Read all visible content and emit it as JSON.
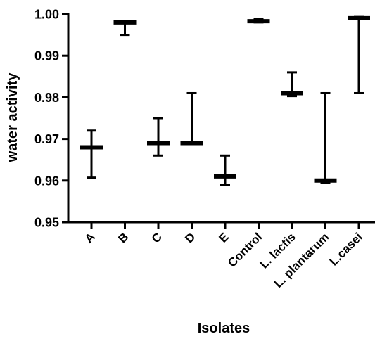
{
  "chart_data": {
    "type": "scatter",
    "style": "floating-bar-min-max-with-median-line",
    "xlabel": "Isolates",
    "ylabel": "water activity",
    "ylim": [
      0.95,
      1.0
    ],
    "yticks": [
      0.95,
      0.96,
      0.97,
      0.98,
      0.99,
      1.0
    ],
    "ytick_labels": [
      "0.95",
      "0.96",
      "0.97",
      "0.98",
      "0.99",
      "1.00"
    ],
    "grid": false,
    "color": "#000000",
    "categories": [
      "A",
      "B",
      "C",
      "D",
      "E",
      "Control",
      "L. lactis",
      "L. plantarum",
      "L.casei"
    ],
    "points": [
      {
        "category": "A",
        "min": 0.9607,
        "max": 0.972,
        "center": 0.968
      },
      {
        "category": "B",
        "min": 0.995,
        "max": 0.9983,
        "center": 0.998
      },
      {
        "category": "C",
        "min": 0.966,
        "max": 0.975,
        "center": 0.969
      },
      {
        "category": "D",
        "min": 0.969,
        "max": 0.981,
        "center": 0.969
      },
      {
        "category": "E",
        "min": 0.959,
        "max": 0.966,
        "center": 0.961
      },
      {
        "category": "Control",
        "min": 0.998,
        "max": 0.9988,
        "center": 0.9983
      },
      {
        "category": "L. lactis",
        "min": 0.9803,
        "max": 0.986,
        "center": 0.981
      },
      {
        "category": "L. plantarum",
        "min": 0.9595,
        "max": 0.981,
        "center": 0.96
      },
      {
        "category": "L.casei",
        "min": 0.981,
        "max": 0.9993,
        "center": 0.999
      }
    ]
  }
}
